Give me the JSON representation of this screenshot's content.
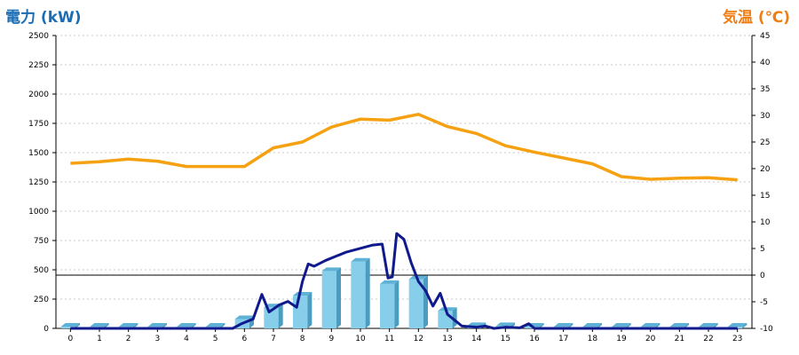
{
  "chart_data": {
    "type": "bar",
    "ylabel_left": "電力 (kW)",
    "ylabel_right": "気温 (℃)",
    "categories": [
      "0",
      "1",
      "2",
      "3",
      "4",
      "5",
      "6",
      "7",
      "8",
      "9",
      "10",
      "11",
      "12",
      "13",
      "14",
      "15",
      "16",
      "17",
      "18",
      "19",
      "20",
      "21",
      "22",
      "23"
    ],
    "ylim_left": [
      0,
      2500
    ],
    "yticks_left": [
      "0",
      "250",
      "500",
      "750",
      "1000",
      "1250",
      "1500",
      "1750",
      "2000",
      "2250",
      "2500"
    ],
    "ylim_right": [
      -10,
      45
    ],
    "yticks_right": [
      "-10",
      "-5",
      "0",
      "5",
      "10",
      "15",
      "20",
      "25",
      "30",
      "35",
      "40",
      "45"
    ],
    "reference_line_right": 0,
    "grid": true,
    "bar_series": {
      "values": [
        15,
        15,
        15,
        15,
        15,
        15,
        80,
        180,
        280,
        490,
        570,
        380,
        420,
        150,
        20,
        20,
        15,
        15,
        15,
        15,
        15,
        15,
        15,
        15
      ],
      "color": "#87ceeb"
    },
    "power_line": {
      "color": "#101a8c",
      "points": [
        [
          0,
          0
        ],
        [
          1,
          0
        ],
        [
          2,
          0
        ],
        [
          3,
          0
        ],
        [
          4,
          0
        ],
        [
          5,
          0
        ],
        [
          5.6,
          0
        ],
        [
          5.9,
          40
        ],
        [
          6.3,
          80
        ],
        [
          6.6,
          290
        ],
        [
          6.85,
          140
        ],
        [
          7.2,
          200
        ],
        [
          7.5,
          230
        ],
        [
          7.8,
          180
        ],
        [
          8.0,
          400
        ],
        [
          8.2,
          550
        ],
        [
          8.4,
          530
        ],
        [
          8.8,
          580
        ],
        [
          9.2,
          620
        ],
        [
          9.5,
          650
        ],
        [
          9.8,
          670
        ],
        [
          10.1,
          690
        ],
        [
          10.4,
          710
        ],
        [
          10.75,
          720
        ],
        [
          10.95,
          430
        ],
        [
          11.1,
          440
        ],
        [
          11.25,
          810
        ],
        [
          11.5,
          760
        ],
        [
          11.75,
          560
        ],
        [
          12.0,
          400
        ],
        [
          12.25,
          320
        ],
        [
          12.5,
          190
        ],
        [
          12.75,
          300
        ],
        [
          13.0,
          120
        ],
        [
          13.5,
          20
        ],
        [
          14.0,
          10
        ],
        [
          14.3,
          20
        ],
        [
          14.6,
          0
        ],
        [
          15.0,
          10
        ],
        [
          15.5,
          5
        ],
        [
          15.8,
          40
        ],
        [
          16.0,
          0
        ],
        [
          17,
          0
        ],
        [
          18,
          0
        ],
        [
          19,
          0
        ],
        [
          20,
          0
        ],
        [
          21,
          0
        ],
        [
          22,
          0
        ],
        [
          23,
          0
        ]
      ]
    },
    "temperature_line": {
      "color": "#f5a111",
      "points": [
        [
          0,
          21
        ],
        [
          1,
          21.3
        ],
        [
          2,
          21.8
        ],
        [
          3,
          21.4
        ],
        [
          4,
          20.4
        ],
        [
          5,
          20.4
        ],
        [
          6,
          20.4
        ],
        [
          7,
          23.9
        ],
        [
          8,
          25
        ],
        [
          9,
          27.8
        ],
        [
          10,
          29.3
        ],
        [
          11,
          29.1
        ],
        [
          12,
          30.2
        ],
        [
          13,
          27.9
        ],
        [
          14,
          26.6
        ],
        [
          15,
          24.3
        ],
        [
          16,
          23.1
        ],
        [
          17,
          22
        ],
        [
          18,
          20.9
        ],
        [
          19,
          18.5
        ],
        [
          20,
          18
        ],
        [
          21,
          18.2
        ],
        [
          22,
          18.3
        ],
        [
          23,
          17.9
        ]
      ]
    }
  }
}
